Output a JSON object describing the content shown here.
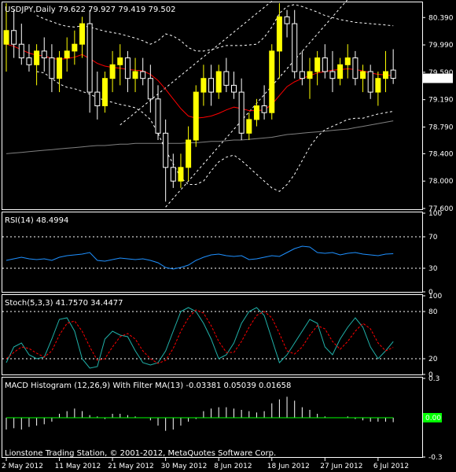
{
  "symbol_label": "USDJPY,Daily",
  "ohlc_label": "79.622 79.927 79.419 79.502",
  "copyright": "Lionstone Trading Station, © 2001-2012, MetaQuotes Software Corp.",
  "colors": {
    "background": "#000000",
    "frame": "#ffffff",
    "candle_up": "#ffff00",
    "candle_down": "#ffffff",
    "ma_fast": "#ff0000",
    "ma_slow": "#808080",
    "bands": "#ffffff",
    "rsi": "#1e90ff",
    "stoch_main": "#20b2aa",
    "stoch_signal": "#ff0000",
    "macd_hist": "#ffffff",
    "macd_filter": "#00ff00"
  },
  "chart_data": [
    {
      "type": "candlestick",
      "title": "USDJPY,Daily",
      "ohlc_readout": "79.622 79.927 79.419 79.502",
      "current_price_label": "79.502",
      "ylim": [
        77.6,
        80.6
      ],
      "y_ticks": [
        "80.390",
        "79.990",
        "79.590",
        "79.190",
        "78.790",
        "78.400",
        "78.000",
        "77.600"
      ],
      "x_ticks": [
        "2 May 2012",
        "11 May 2012",
        "21 May 2012",
        "30 May 2012",
        "8 Jun 2012",
        "18 Jun 2012",
        "27 Jun 2012",
        "6 Jul 2012"
      ],
      "x_tick_bars": [
        0,
        7,
        14,
        21,
        28,
        35,
        42,
        49
      ],
      "candles": [
        [
          80.0,
          80.6,
          79.6,
          80.2
        ],
        [
          80.2,
          80.5,
          79.8,
          80.0
        ],
        [
          80.0,
          80.3,
          79.7,
          79.8
        ],
        [
          79.8,
          80.0,
          79.6,
          79.7
        ],
        [
          79.7,
          80.0,
          79.4,
          79.9
        ],
        [
          79.9,
          80.1,
          79.6,
          79.8
        ],
        [
          79.8,
          80.0,
          79.3,
          79.5
        ],
        [
          79.5,
          79.9,
          79.3,
          79.8
        ],
        [
          79.8,
          80.1,
          79.6,
          79.9
        ],
        [
          79.9,
          80.2,
          79.7,
          80.0
        ],
        [
          80.0,
          80.4,
          79.8,
          80.3
        ],
        [
          80.3,
          80.5,
          79.0,
          79.3
        ],
        [
          79.3,
          79.6,
          78.9,
          79.1
        ],
        [
          79.1,
          79.6,
          79.0,
          79.5
        ],
        [
          79.5,
          79.9,
          79.3,
          79.7
        ],
        [
          79.7,
          80.0,
          79.4,
          79.8
        ],
        [
          79.8,
          79.9,
          79.3,
          79.5
        ],
        [
          79.5,
          79.8,
          79.3,
          79.6
        ],
        [
          79.6,
          79.8,
          79.4,
          79.5
        ],
        [
          79.5,
          79.7,
          79.0,
          79.2
        ],
        [
          79.2,
          79.4,
          78.6,
          78.7
        ],
        [
          78.7,
          78.9,
          77.7,
          78.2
        ],
        [
          78.2,
          78.4,
          77.9,
          78.0
        ],
        [
          78.0,
          78.4,
          77.9,
          78.2
        ],
        [
          78.2,
          78.8,
          78.0,
          78.6
        ],
        [
          78.6,
          79.4,
          78.5,
          79.3
        ],
        [
          79.3,
          79.7,
          79.1,
          79.5
        ],
        [
          79.5,
          79.7,
          79.1,
          79.3
        ],
        [
          79.3,
          79.7,
          79.2,
          79.6
        ],
        [
          79.6,
          79.8,
          79.3,
          79.4
        ],
        [
          79.4,
          79.6,
          79.2,
          79.3
        ],
        [
          79.3,
          79.5,
          78.6,
          78.7
        ],
        [
          78.7,
          79.0,
          78.6,
          78.9
        ],
        [
          78.9,
          79.2,
          78.8,
          79.1
        ],
        [
          79.1,
          79.4,
          78.9,
          79.0
        ],
        [
          79.0,
          80.0,
          78.9,
          79.9
        ],
        [
          79.9,
          80.6,
          79.5,
          80.4
        ],
        [
          80.4,
          80.5,
          80.1,
          80.3
        ],
        [
          80.3,
          80.5,
          79.5,
          79.6
        ],
        [
          79.6,
          79.9,
          79.4,
          79.5
        ],
        [
          79.5,
          79.8,
          79.2,
          79.6
        ],
        [
          79.6,
          79.9,
          79.4,
          79.8
        ],
        [
          79.8,
          80.0,
          79.5,
          79.6
        ],
        [
          79.6,
          79.9,
          79.3,
          79.5
        ],
        [
          79.5,
          79.8,
          79.4,
          79.7
        ],
        [
          79.7,
          80.0,
          79.5,
          79.8
        ],
        [
          79.8,
          79.9,
          79.4,
          79.5
        ],
        [
          79.5,
          79.7,
          79.3,
          79.6
        ],
        [
          79.6,
          79.7,
          79.2,
          79.3
        ],
        [
          79.3,
          79.6,
          79.1,
          79.5
        ],
        [
          79.5,
          79.9,
          79.3,
          79.6
        ],
        [
          79.622,
          79.927,
          79.419,
          79.502
        ]
      ],
      "ma_fast": [
        80.0,
        79.97,
        79.92,
        79.87,
        79.84,
        79.83,
        79.79,
        79.78,
        79.79,
        79.81,
        79.85,
        79.79,
        79.72,
        79.68,
        79.66,
        79.65,
        79.63,
        79.62,
        79.61,
        79.56,
        79.47,
        79.34,
        79.2,
        79.06,
        78.95,
        78.92,
        78.93,
        78.95,
        78.99,
        79.04,
        79.08,
        79.06,
        79.03,
        79.03,
        79.04,
        79.12,
        79.25,
        79.38,
        79.45,
        79.5,
        79.54,
        79.58,
        79.6,
        79.62,
        79.63,
        79.64,
        79.63,
        79.61,
        79.58,
        79.56,
        79.55,
        79.54
      ],
      "ma_slow": [
        78.4,
        78.41,
        78.42,
        78.43,
        78.44,
        78.45,
        78.46,
        78.47,
        78.48,
        78.49,
        78.5,
        78.51,
        78.52,
        78.52,
        78.53,
        78.54,
        78.54,
        78.55,
        78.55,
        78.55,
        78.55,
        78.55,
        78.55,
        78.55,
        78.56,
        78.56,
        78.57,
        78.58,
        78.58,
        78.59,
        78.6,
        78.6,
        78.61,
        78.62,
        78.63,
        78.64,
        78.66,
        78.68,
        78.69,
        78.7,
        78.71,
        78.72,
        78.73,
        78.74,
        78.75,
        78.76,
        78.78,
        78.8,
        78.82,
        78.84,
        78.86,
        78.88
      ],
      "band_upper": [
        null,
        null,
        null,
        null,
        80.42,
        80.37,
        80.33,
        80.29,
        80.26,
        80.25,
        80.27,
        80.25,
        80.22,
        80.19,
        80.17,
        80.15,
        80.12,
        80.09,
        80.05,
        80.0,
        80.05,
        80.15,
        80.12,
        80.05,
        79.95,
        79.9,
        79.9,
        79.92,
        79.95,
        79.98,
        79.98,
        79.98,
        79.99,
        80.0,
        80.1,
        80.25,
        80.45,
        80.55,
        80.58,
        80.55,
        80.51,
        80.47,
        80.42,
        80.39,
        80.36,
        80.34,
        80.32,
        80.31,
        80.3,
        80.29,
        80.28,
        80.27
      ],
      "band_lower": [
        null,
        null,
        null,
        null,
        79.6,
        79.58,
        79.5,
        79.42,
        79.37,
        79.35,
        79.31,
        79.27,
        79.22,
        79.18,
        79.15,
        79.12,
        79.1,
        79.07,
        79.0,
        78.9,
        78.7,
        78.45,
        78.25,
        78.05,
        77.95,
        77.95,
        78.0,
        78.15,
        78.28,
        78.35,
        78.38,
        78.3,
        78.2,
        78.1,
        78.0,
        77.9,
        77.85,
        77.95,
        78.1,
        78.3,
        78.5,
        78.65,
        78.75,
        78.8,
        78.85,
        78.9,
        78.92,
        78.92,
        78.95,
        78.98,
        79.0,
        79.02
      ],
      "trend_lines": [
        {
          "from": [
            21,
            77.62
          ],
          "to": [
            37,
            79.42
          ],
          "extend_to": 59,
          "style": "dashed"
        },
        {
          "from": [
            15,
            78.82
          ],
          "to": [
            36,
            80.72
          ],
          "style": "dashed"
        }
      ]
    },
    {
      "type": "line",
      "title": "RSI(14) 48.4994",
      "ylim": [
        0,
        100
      ],
      "y_ticks": [
        "100",
        "70",
        "30",
        "0"
      ],
      "levels": [
        70,
        30
      ],
      "series": [
        {
          "name": "RSI(14)",
          "values": [
            40,
            42,
            44,
            42,
            41,
            42,
            40,
            44,
            46,
            47,
            48,
            50,
            40,
            39,
            41,
            43,
            42,
            41,
            42,
            40,
            37,
            31,
            29,
            31,
            34,
            40,
            44,
            47,
            48,
            46,
            45,
            46,
            41,
            42,
            44,
            46,
            45,
            50,
            55,
            58,
            57,
            50,
            49,
            50,
            47,
            49,
            50,
            48,
            47,
            46,
            48,
            48.5
          ]
        }
      ]
    },
    {
      "type": "line",
      "title": "Stoch(5,3,3) 41.7570 34.4477",
      "ylim": [
        0,
        100
      ],
      "y_ticks": [
        "100",
        "80",
        "20",
        "0"
      ],
      "levels": [
        80,
        20
      ],
      "series": [
        {
          "name": "Stoch(5,3,3)",
          "values": [
            15,
            35,
            40,
            25,
            20,
            22,
            45,
            70,
            72,
            55,
            20,
            8,
            10,
            45,
            55,
            50,
            48,
            30,
            15,
            12,
            15,
            30,
            55,
            80,
            85,
            80,
            65,
            45,
            20,
            25,
            40,
            65,
            80,
            85,
            75,
            45,
            15,
            25,
            40,
            55,
            70,
            65,
            35,
            25,
            45,
            60,
            72,
            60,
            35,
            20,
            30,
            41.757
          ]
        },
        {
          "name": "Signal",
          "values": [
            20,
            28,
            35,
            33,
            27,
            22,
            30,
            50,
            65,
            68,
            55,
            35,
            18,
            20,
            35,
            48,
            52,
            45,
            30,
            20,
            14,
            18,
            33,
            55,
            72,
            82,
            78,
            62,
            42,
            28,
            28,
            42,
            60,
            75,
            80,
            72,
            52,
            30,
            26,
            35,
            50,
            62,
            58,
            42,
            32,
            42,
            55,
            65,
            58,
            40,
            30,
            34.4477
          ]
        }
      ]
    },
    {
      "type": "bar",
      "title": "MACD Histogram (12,26,9) With Filter MA(13) -0.03381 0.05039 0.01658",
      "ylim": [
        -0.3,
        0.3
      ],
      "y_ticks": [
        "0.3",
        "0.00",
        "-0.3"
      ],
      "current_value_label": "0.00",
      "values": [
        -0.09,
        -0.08,
        -0.09,
        -0.07,
        -0.06,
        -0.05,
        -0.03,
        0.03,
        0.05,
        0.07,
        0.05,
        0.02,
        0.01,
        -0.01,
        0.03,
        0.03,
        0.02,
        0.01,
        0.0,
        -0.02,
        -0.06,
        -0.1,
        -0.09,
        -0.06,
        -0.03,
        -0.01,
        0.05,
        0.07,
        0.08,
        0.08,
        0.07,
        0.06,
        0.05,
        0.04,
        0.05,
        0.11,
        0.14,
        0.16,
        0.13,
        0.08,
        0.06,
        0.03,
        0.01,
        0.0,
        0.0,
        0.01,
        -0.01,
        -0.02,
        -0.03,
        -0.03,
        -0.03,
        -0.034
      ],
      "filter_values": [
        0.0,
        0.0,
        0.0,
        0.0,
        0.0,
        0.0,
        0.0,
        0.0,
        0.0,
        0.0,
        0.0,
        0.0,
        0.0,
        0.0,
        0.0,
        0.0,
        0.0,
        0.0,
        0.0,
        0.0,
        0.0,
        0.0,
        0.0,
        0.0,
        0.0,
        0.0,
        0.0,
        0.0,
        0.0,
        0.0,
        0.0,
        0.0,
        0.0,
        0.0,
        0.0,
        0.0,
        0.0,
        0.0,
        0.0,
        0.0,
        0.0,
        0.0,
        0.0,
        0.0,
        0.0,
        0.0,
        0.0,
        0.0,
        0.0,
        0.0,
        0.0,
        0.0
      ]
    }
  ]
}
